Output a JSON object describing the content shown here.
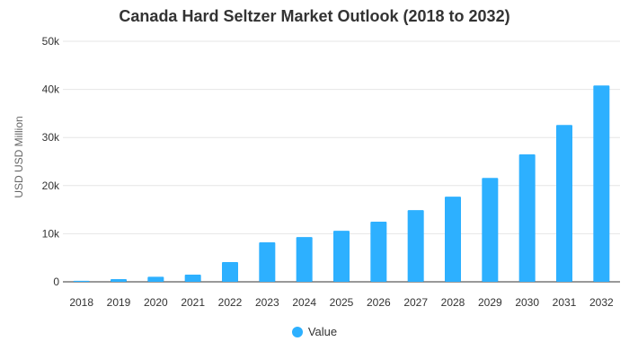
{
  "chart_data": {
    "type": "bar",
    "title": "Canada Hard Seltzer Market Outlook (2018 to 2032)",
    "xlabel": "",
    "ylabel": "USD USD Million",
    "categories": [
      "2018",
      "2019",
      "2020",
      "2021",
      "2022",
      "2023",
      "2024",
      "2025",
      "2026",
      "2027",
      "2028",
      "2029",
      "2030",
      "2031",
      "2032"
    ],
    "series": [
      {
        "name": "Value",
        "color": "#2db0ff",
        "values": [
          200,
          550,
          1050,
          1500,
          4100,
          8200,
          9300,
          10600,
          12500,
          14900,
          17700,
          21600,
          26500,
          32600,
          40800
        ]
      }
    ],
    "ylim": [
      0,
      50000
    ],
    "yticks": [
      {
        "value": 0,
        "label": "0"
      },
      {
        "value": 10000,
        "label": "10k"
      },
      {
        "value": 20000,
        "label": "20k"
      },
      {
        "value": 30000,
        "label": "30k"
      },
      {
        "value": 40000,
        "label": "40k"
      },
      {
        "value": 50000,
        "label": "50k"
      }
    ],
    "grid": true,
    "legend_position": "bottom"
  }
}
